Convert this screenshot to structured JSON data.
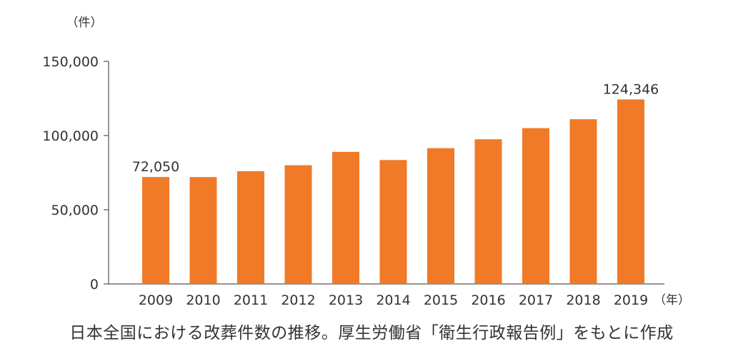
{
  "chart_data": {
    "type": "bar",
    "categories": [
      "2009",
      "2010",
      "2011",
      "2012",
      "2013",
      "2014",
      "2015",
      "2016",
      "2017",
      "2018",
      "2019"
    ],
    "values": [
      72050,
      72000,
      76000,
      80000,
      89000,
      83500,
      91500,
      97500,
      105000,
      111000,
      124346
    ],
    "ylim": [
      0,
      150000
    ],
    "yticks": [
      0,
      50000,
      100000,
      150000
    ],
    "ytick_labels": [
      "0",
      "50,000",
      "100,000",
      "150,000"
    ],
    "y_unit": "（件）",
    "x_unit": "（年）",
    "data_labels": [
      {
        "category": "2009",
        "text": "72,050"
      },
      {
        "category": "2019",
        "text": "124,346"
      }
    ],
    "bar_color": "#f07a28",
    "axis_color": "#555555",
    "grid": false,
    "legend": "none"
  },
  "caption": "日本全国における改葬件数の推移。厚生労働省「衛生行政報告例」をもとに作成"
}
